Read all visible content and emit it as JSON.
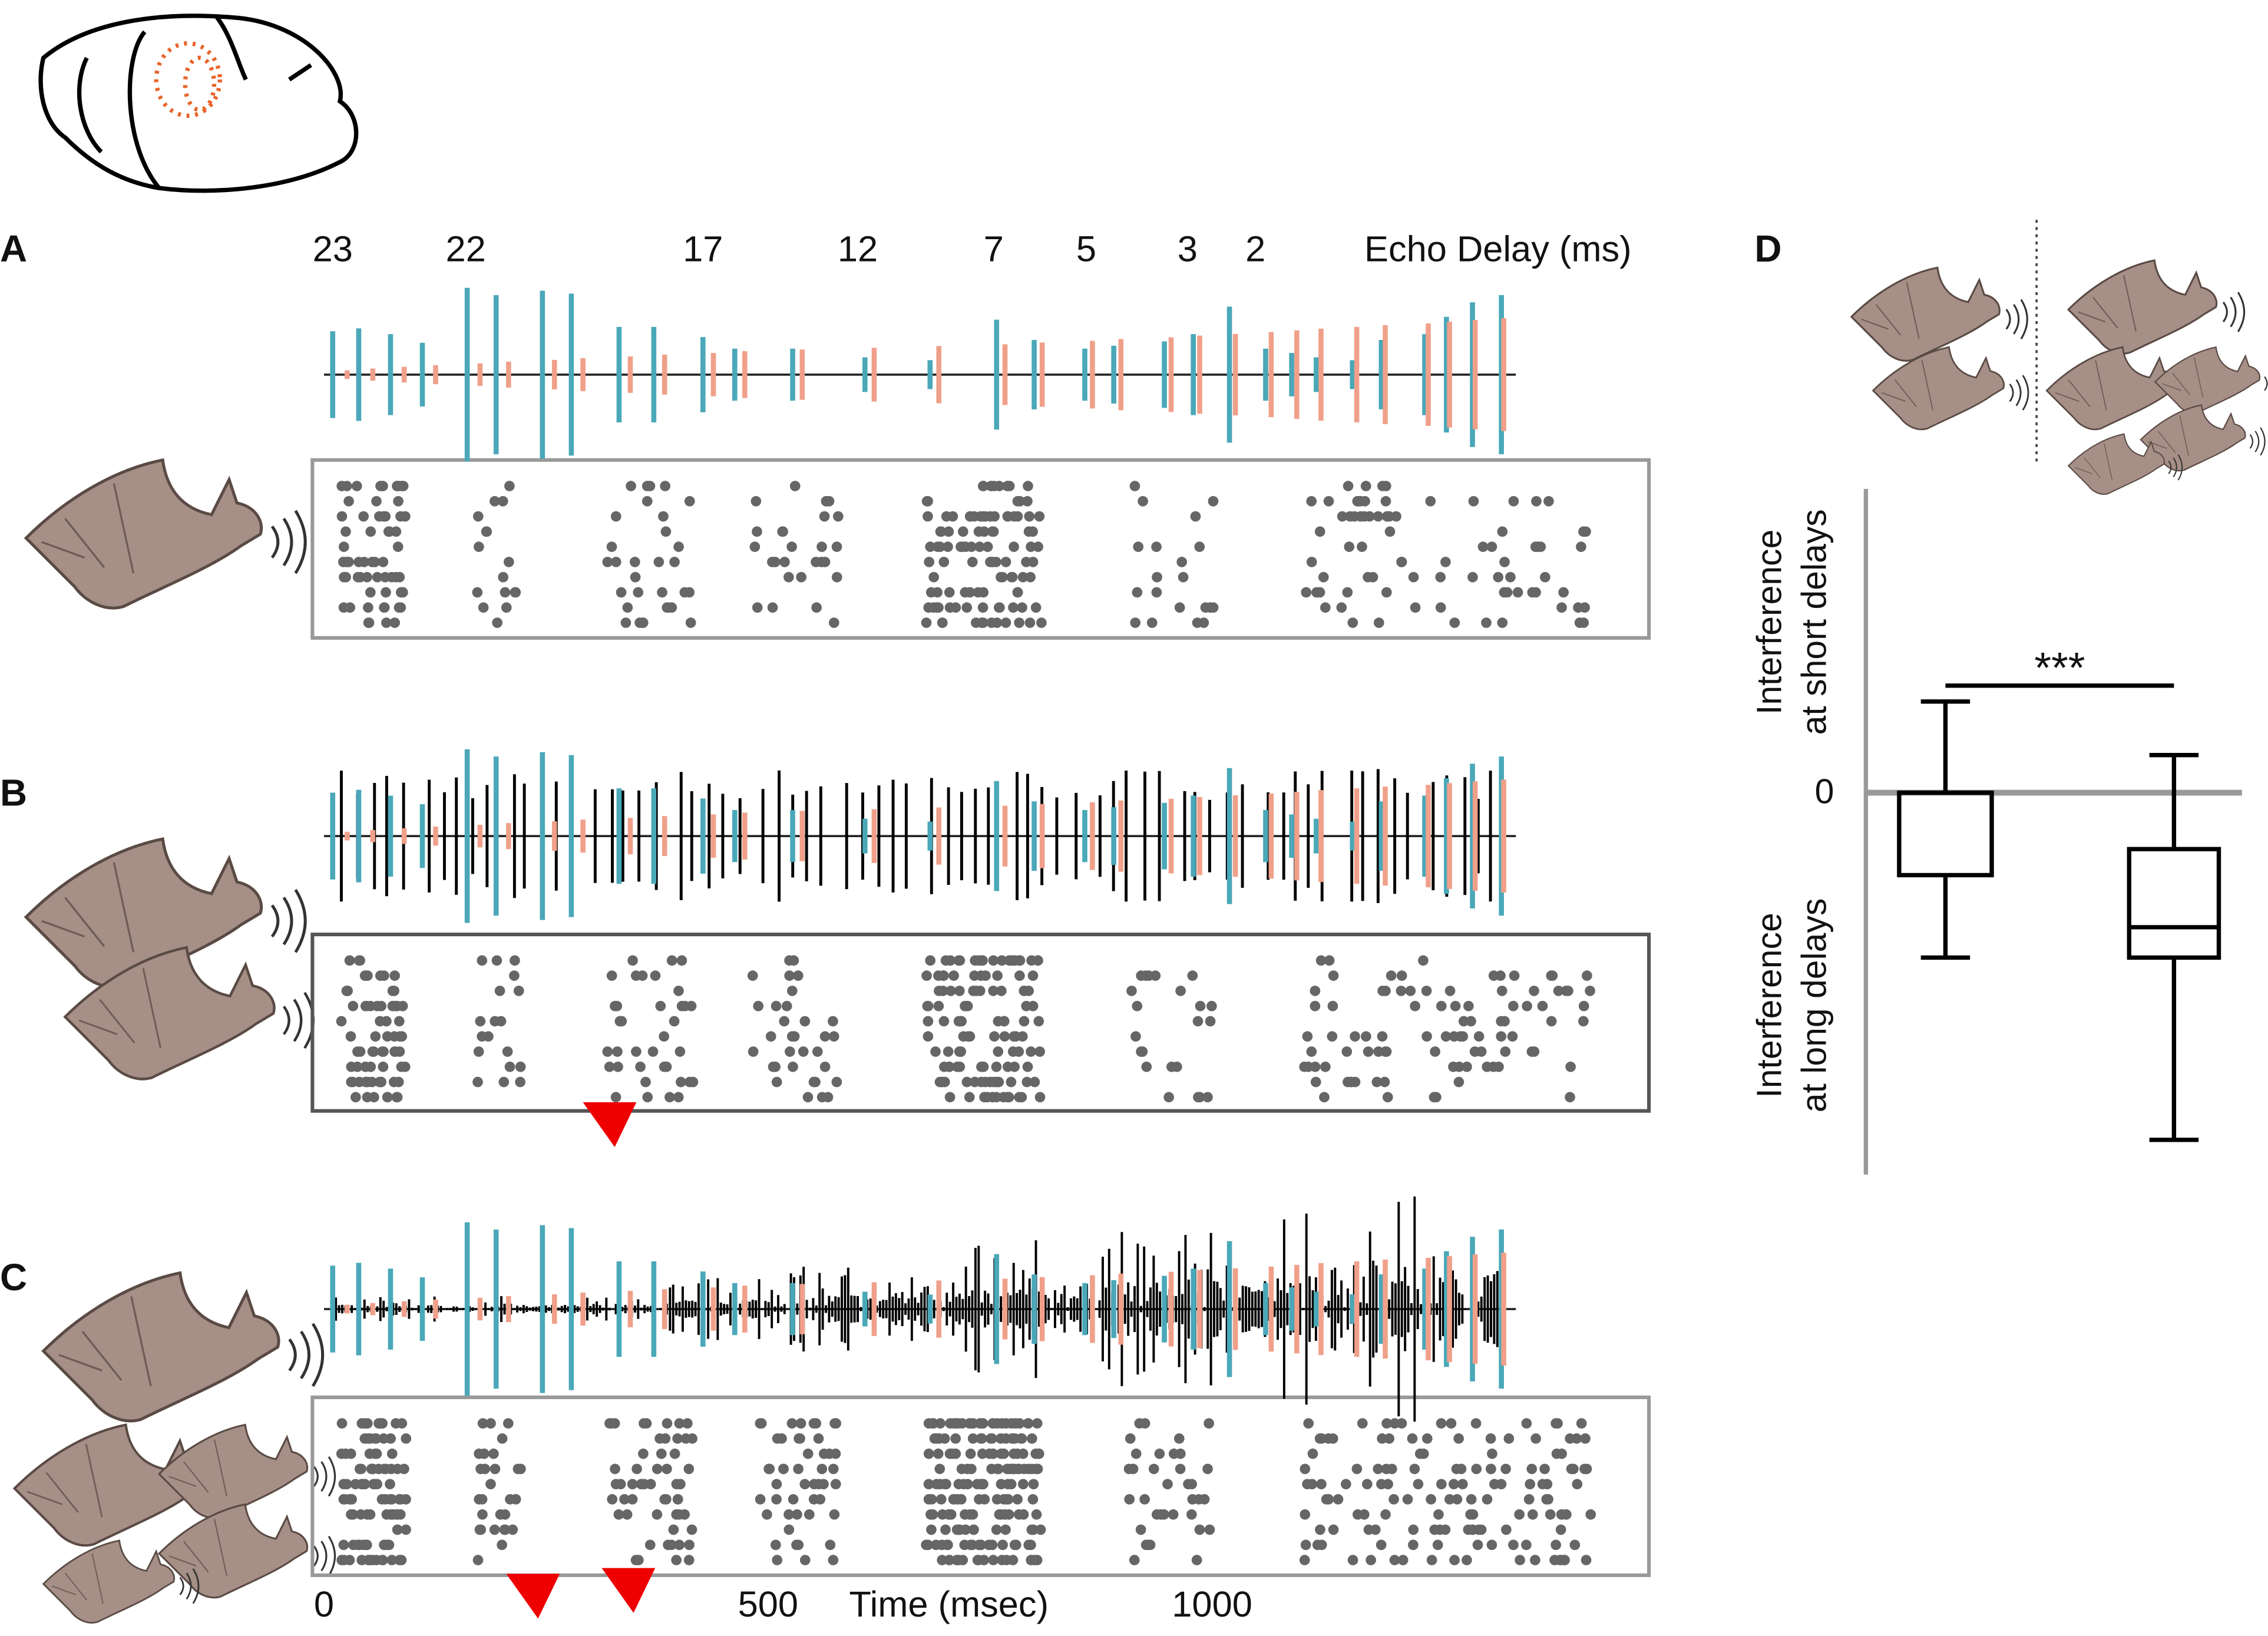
{
  "panels": {
    "A": {
      "label": "A",
      "delays": [
        "23",
        "22",
        "17",
        "12",
        "7",
        "5",
        "3",
        "2"
      ],
      "delay_axis_label": "Echo Delay (ms)"
    },
    "B": {
      "label": "B"
    },
    "C": {
      "label": "C"
    },
    "time_axis": {
      "label": "Time (msec)",
      "ticks": [
        0,
        500,
        1000
      ]
    },
    "D": {
      "label": "D",
      "significance": "***",
      "zero_label": "0",
      "y_label_top": [
        "Interference",
        "at short delays"
      ],
      "y_label_bottom": [
        "Interference",
        "at long delays"
      ]
    }
  }
}
